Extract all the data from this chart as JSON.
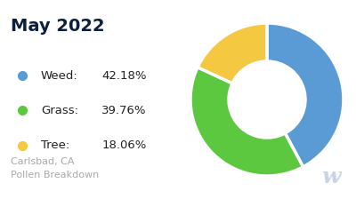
{
  "title": "May 2022",
  "title_color": "#0d1f3c",
  "title_fontsize": 14,
  "slices": [
    42.18,
    39.76,
    18.06
  ],
  "labels": [
    "Weed",
    "Grass",
    "Tree"
  ],
  "percentages": [
    "42.18%",
    "39.76%",
    "18.06%"
  ],
  "colors": [
    "#5b9bd5",
    "#5cc840",
    "#f5c842"
  ],
  "subtitle": "Carlsbad, CA\nPollen Breakdown",
  "subtitle_color": "#aaaaaa",
  "subtitle_fontsize": 8,
  "background_color": "#ffffff",
  "start_angle": 90,
  "donut_width": 0.5,
  "legend_label_fontsize": 9.5,
  "watermark_color": "#c8d4e8",
  "watermark_text": "w"
}
